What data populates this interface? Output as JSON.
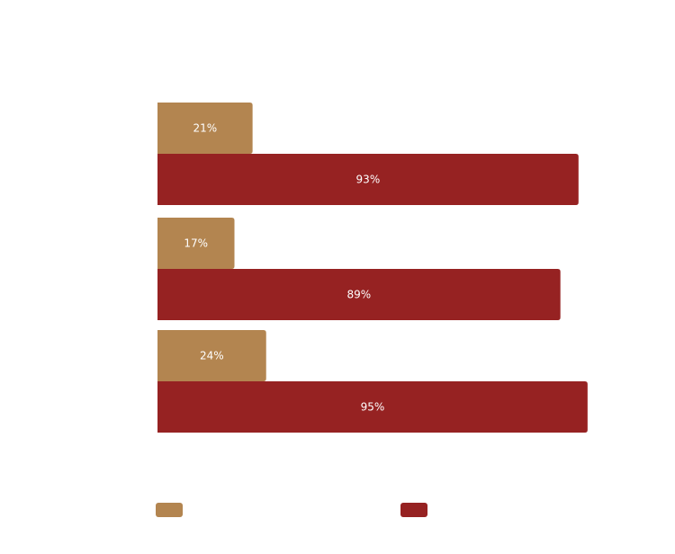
{
  "chart_data": {
    "type": "bar",
    "orientation": "horizontal",
    "categories": [
      "",
      "",
      ""
    ],
    "series": [
      {
        "values": [
          21,
          17,
          24
        ],
        "color": "#b38550"
      },
      {
        "values": [
          93,
          89,
          95
        ],
        "color": "#962222"
      }
    ],
    "value_labels": [
      [
        "21%",
        "17%",
        "24%"
      ],
      [
        "93%",
        "89%",
        "95%"
      ]
    ],
    "xlim": [
      0,
      100
    ],
    "grid": false,
    "legend": "bottom"
  }
}
